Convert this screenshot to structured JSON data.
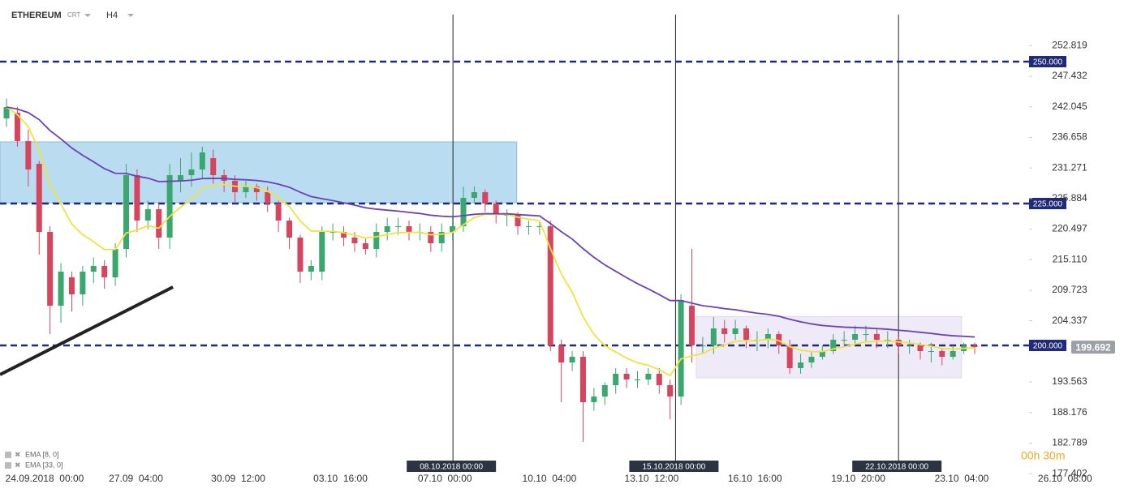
{
  "chart_data": {
    "type": "candlestick",
    "symbol": "ETHEREUM",
    "source": "CRT",
    "timeframe": "H4",
    "open": [
      240,
      241,
      236,
      232,
      220,
      207,
      212,
      209,
      213,
      214,
      212,
      217,
      230,
      222,
      224,
      219,
      229,
      230,
      231,
      233,
      230,
      229,
      227,
      228,
      227,
      225,
      222,
      219,
      213,
      213,
      220,
      220,
      219,
      218,
      217,
      220,
      221,
      221,
      220,
      220,
      218,
      220,
      221,
      226,
      227,
      225,
      223,
      223,
      221,
      221,
      221,
      200,
      197,
      198,
      190,
      191,
      193,
      195,
      194,
      194,
      195,
      193,
      191,
      207,
      200,
      200,
      203,
      202,
      203,
      201,
      201,
      202,
      200,
      196,
      197,
      198,
      199,
      201,
      201,
      202,
      202,
      201,
      201,
      200,
      200,
      199,
      199,
      198,
      199,
      200
    ],
    "high": [
      243.5,
      242,
      238,
      232.5,
      221,
      214.5,
      213,
      214,
      215.5,
      215,
      218,
      232,
      231,
      225.5,
      225,
      232,
      233,
      234,
      235,
      234.5,
      231,
      230,
      229,
      228.5,
      228,
      225.5,
      222.5,
      219.5,
      215,
      221,
      221.5,
      221,
      220,
      219,
      221.5,
      222.5,
      222.5,
      222,
      221.5,
      221,
      221.5,
      223,
      228,
      228,
      227.5,
      225.5,
      224,
      223.5,
      222,
      222,
      222,
      201,
      199,
      199,
      192.5,
      193.5,
      196,
      196,
      195.5,
      196,
      196,
      194,
      209,
      217,
      201.5,
      205,
      204.5,
      204.5,
      203.5,
      202.5,
      203,
      202.5,
      201,
      198.5,
      199,
      200,
      202,
      202.5,
      203.5,
      203.5,
      203,
      202.5,
      201.5,
      201,
      200.5,
      200.5,
      199.5,
      200,
      200.5,
      200.5
    ],
    "low": [
      238.5,
      235,
      228,
      216,
      202,
      204,
      206,
      207,
      211,
      210,
      210.5,
      215.5,
      220,
      220.5,
      217,
      217,
      227,
      228,
      229.5,
      228.5,
      227,
      225,
      226,
      225.5,
      223.5,
      220,
      217,
      211,
      211.5,
      211.5,
      218.5,
      217.5,
      216.5,
      216,
      215.5,
      218.5,
      219.5,
      218.5,
      218.5,
      216.5,
      216.5,
      218.5,
      220,
      225,
      223.5,
      221.5,
      221,
      219.5,
      219.5,
      219.5,
      199,
      190,
      195.5,
      183,
      188.5,
      189.5,
      191.5,
      192.5,
      192.5,
      193,
      191.5,
      187,
      189.5,
      197,
      198.5,
      198.5,
      200.5,
      201,
      199.5,
      199,
      199.5,
      198.5,
      195,
      195,
      196,
      197.5,
      198.5,
      200,
      200,
      200.5,
      199.5,
      199.5,
      198.5,
      198.5,
      197.5,
      197,
      196.5,
      197.5,
      198.5,
      198.5
    ],
    "close": [
      242,
      236,
      231,
      220,
      207,
      213,
      209,
      213,
      214,
      212,
      217,
      230,
      222,
      224,
      219,
      230,
      230,
      231,
      234,
      230,
      229,
      227,
      228,
      227,
      225,
      222,
      219,
      213,
      214,
      220,
      220,
      219,
      218,
      217,
      220,
      221,
      221,
      220,
      220,
      218,
      220,
      221,
      226,
      227,
      225,
      223,
      223,
      221,
      221,
      221,
      200,
      197,
      198,
      190,
      191,
      193,
      195,
      194,
      194,
      195,
      193,
      191,
      208,
      200,
      200,
      203,
      202,
      203,
      201,
      201,
      202,
      200,
      196,
      197,
      198,
      199,
      201,
      201,
      202,
      202,
      201,
      201,
      200,
      200,
      199,
      199,
      198,
      199,
      200,
      199.692
    ],
    "up_color": "#3aa76d",
    "down_color": "#d6455d",
    "ema": [
      {
        "name": "EMA [8, 0]",
        "period": 8,
        "color": "#f2e23c"
      },
      {
        "name": "EMA [33, 0]",
        "period": 33,
        "color": "#6a42b8"
      }
    ],
    "xlim": [
      -0.6,
      93.4
    ],
    "ylim": [
      175.43,
      258.29
    ],
    "xticks": [
      {
        "value": 3.5,
        "label": "24.09.2018  00:00"
      },
      {
        "value": 11.9,
        "label": "27.09  04:00"
      },
      {
        "value": 21.3,
        "label": "30.09  12:00"
      },
      {
        "value": 30.7,
        "label": "03.10  16:00"
      },
      {
        "value": 40.3,
        "label": "07.10  00:00"
      },
      {
        "value": 49.9,
        "label": "10.10  04:00"
      },
      {
        "value": 59.3,
        "label": "13.10  12:00"
      },
      {
        "value": 68.8,
        "label": "16.10  16:00"
      },
      {
        "value": 78.3,
        "label": "19.10  20:00"
      },
      {
        "value": 87.8,
        "label": "23.10  04:00"
      },
      {
        "value": 97.3,
        "label": "26.10  08:00"
      }
    ],
    "yticks": [
      252.819,
      247.432,
      242.045,
      236.658,
      231.271,
      225.884,
      220.497,
      {
        "value": 215.11,
        "label": "215.110"
      },
      209.723,
      204.337,
      193.563,
      188.176,
      182.789,
      177.402
    ],
    "levels": [
      {
        "value": 250,
        "label": "250.000"
      },
      {
        "value": 225,
        "label": "225.000"
      },
      {
        "value": 200,
        "label": "200.000"
      }
    ],
    "level_color": "#1f2a7a",
    "vlines": [
      {
        "value": 41.04,
        "label": "08.10.2018 00:00"
      },
      {
        "value": 61.5,
        "label": "15.10.2018 00:00"
      },
      {
        "value": 82.0,
        "label": "22.10.2018 00:00"
      }
    ],
    "zones": [
      {
        "x": [
          -0.6,
          46.9
        ],
        "y": [
          225.14,
          235.86
        ],
        "color": "#b9dcf0"
      },
      {
        "x": [
          63.4,
          87.8
        ],
        "y": [
          194.3,
          205.1
        ],
        "color": "#efeaf8"
      }
    ],
    "trendline": {
      "x": [
        -0.6,
        15.3
      ],
      "y": [
        194.86,
        210.29
      ]
    },
    "timer": "00h 30m"
  }
}
